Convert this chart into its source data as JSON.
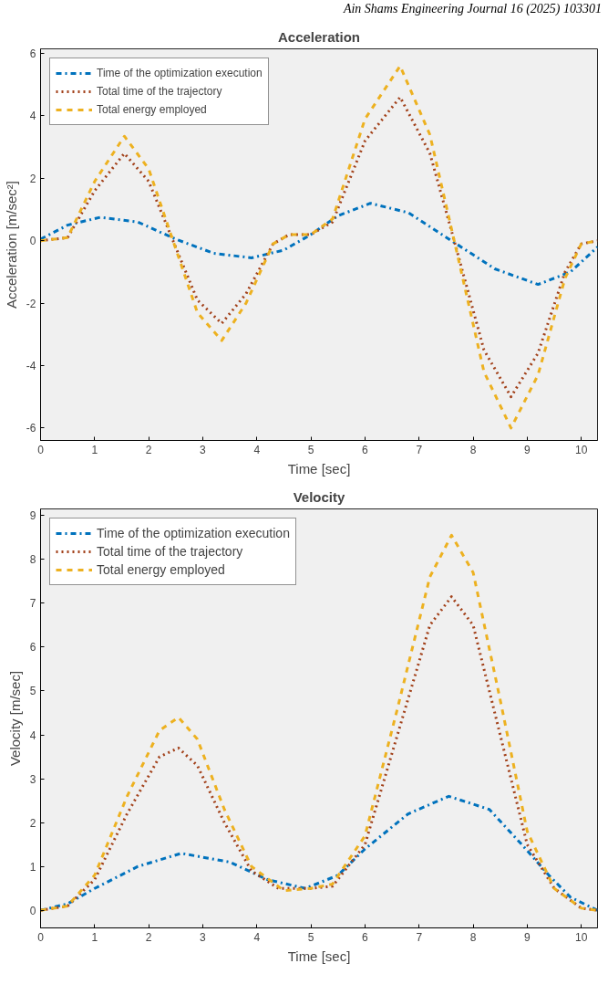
{
  "chart_data": [
    {
      "type": "line",
      "title": "Acceleration",
      "xlabel": "Time [sec]",
      "ylabel": "Acceleration [m/sec²]",
      "annotations": [
        "Ain Shams Engineering Journal 16 (2025) 103301"
      ],
      "xlim": [
        0,
        10.3
      ],
      "ylim": [
        -6.4,
        6.15
      ],
      "xticks": [
        0,
        1,
        2,
        3,
        4,
        5,
        6,
        7,
        8,
        9,
        10
      ],
      "yticks": [
        -6,
        -4,
        -2,
        0,
        2,
        4,
        6
      ],
      "grid": false,
      "legend": "top left",
      "series": [
        {
          "name": "Time of the optimization execution",
          "color": "#0072bd",
          "line_style": "dashdot",
          "x": [
            0,
            0.5,
            1.1,
            1.8,
            2.5,
            3.2,
            3.9,
            4.5,
            5.0,
            5.5,
            6.1,
            6.8,
            7.6,
            8.4,
            9.2,
            9.8,
            10.3
          ],
          "values": [
            0.05,
            0.5,
            0.75,
            0.6,
            0.05,
            -0.4,
            -0.55,
            -0.3,
            0.2,
            0.8,
            1.2,
            0.9,
            0,
            -0.9,
            -1.4,
            -1.0,
            -0.2
          ]
        },
        {
          "name": "Total time of the trajectory",
          "color": "#a2411a",
          "line_style": "dotted",
          "x": [
            0,
            0.5,
            1.0,
            1.55,
            2.0,
            2.45,
            2.9,
            3.35,
            3.8,
            4.3,
            4.6,
            5.0,
            5.4,
            6.0,
            6.65,
            7.2,
            7.65,
            8.2,
            8.7,
            9.2,
            9.7,
            10.0,
            10.3
          ],
          "values": [
            0,
            0.1,
            1.6,
            2.8,
            1.9,
            0,
            -1.9,
            -2.65,
            -1.7,
            -0.1,
            0.2,
            0.2,
            0.6,
            3.2,
            4.6,
            2.8,
            0,
            -3.5,
            -5.0,
            -3.6,
            -1.0,
            -0.1,
            0
          ]
        },
        {
          "name": "Total energy employed",
          "color": "#edb120",
          "line_style": "dashed",
          "x": [
            0,
            0.5,
            1.0,
            1.55,
            2.0,
            2.45,
            2.9,
            3.35,
            3.8,
            4.3,
            4.6,
            5.0,
            5.4,
            6.0,
            6.65,
            7.2,
            7.65,
            8.2,
            8.7,
            9.2,
            9.7,
            10.0,
            10.3
          ],
          "values": [
            0,
            0.1,
            1.9,
            3.35,
            2.3,
            0,
            -2.3,
            -3.2,
            -2.0,
            -0.1,
            0.2,
            0.2,
            0.7,
            3.9,
            5.6,
            3.4,
            0,
            -4.2,
            -6.0,
            -4.3,
            -1.2,
            -0.1,
            0
          ]
        }
      ]
    },
    {
      "type": "line",
      "title": "Velocity",
      "xlabel": "Time [sec]",
      "ylabel": "Velocity [m/sec]",
      "xlim": [
        0,
        10.3
      ],
      "ylim": [
        -0.4,
        9.15
      ],
      "xticks": [
        0,
        1,
        2,
        3,
        4,
        5,
        6,
        7,
        8,
        9,
        10
      ],
      "yticks": [
        0,
        1,
        2,
        3,
        4,
        5,
        6,
        7,
        8,
        9
      ],
      "grid": false,
      "legend": "top left",
      "series": [
        {
          "name": "Time of the optimization execution",
          "color": "#0072bd",
          "line_style": "dashdot",
          "x": [
            0,
            0.5,
            1,
            1.8,
            2.6,
            3.5,
            4.2,
            4.9,
            5.5,
            6,
            6.8,
            7.55,
            8.3,
            8.9,
            9.4,
            9.8,
            10.3
          ],
          "values": [
            0,
            0.15,
            0.5,
            1.0,
            1.3,
            1.1,
            0.7,
            0.5,
            0.8,
            1.4,
            2.2,
            2.6,
            2.3,
            1.5,
            0.8,
            0.3,
            0
          ]
        },
        {
          "name": "Total time of the trajectory",
          "color": "#a2411a",
          "line_style": "dotted",
          "x": [
            0,
            0.5,
            1,
            1.6,
            2.2,
            2.55,
            2.9,
            3.4,
            3.9,
            4.4,
            5,
            5.4,
            6,
            6.6,
            7.2,
            7.6,
            8,
            8.5,
            9,
            9.5,
            10,
            10.3
          ],
          "values": [
            0,
            0.1,
            0.7,
            2.2,
            3.5,
            3.7,
            3.3,
            2.0,
            0.9,
            0.5,
            0.5,
            0.55,
            1.5,
            4.0,
            6.5,
            7.15,
            6.5,
            4.0,
            1.5,
            0.5,
            0.05,
            0
          ]
        },
        {
          "name": "Total energy employed",
          "color": "#edb120",
          "line_style": "dashed",
          "x": [
            0,
            0.5,
            1,
            1.6,
            2.2,
            2.55,
            2.9,
            3.4,
            3.9,
            4.5,
            5,
            5.4,
            6,
            6.6,
            7.2,
            7.6,
            8,
            8.5,
            9,
            9.5,
            10,
            10.3
          ],
          "values": [
            0,
            0.1,
            0.8,
            2.6,
            4.1,
            4.4,
            3.9,
            2.3,
            1.0,
            0.45,
            0.5,
            0.6,
            1.7,
            4.6,
            7.6,
            8.55,
            7.7,
            4.8,
            1.8,
            0.5,
            0.05,
            0
          ]
        }
      ]
    }
  ]
}
